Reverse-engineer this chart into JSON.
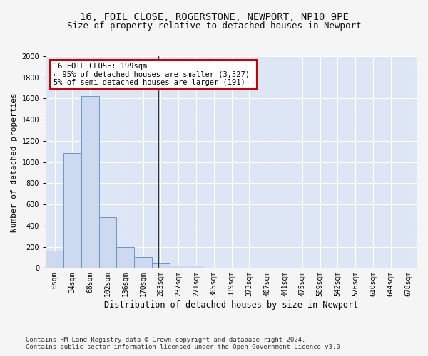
{
  "title1": "16, FOIL CLOSE, ROGERSTONE, NEWPORT, NP10 9PE",
  "title2": "Size of property relative to detached houses in Newport",
  "xlabel": "Distribution of detached houses by size in Newport",
  "ylabel": "Number of detached properties",
  "categories": [
    "0sqm",
    "34sqm",
    "68sqm",
    "102sqm",
    "136sqm",
    "170sqm",
    "203sqm",
    "237sqm",
    "271sqm",
    "305sqm",
    "339sqm",
    "373sqm",
    "407sqm",
    "441sqm",
    "475sqm",
    "509sqm",
    "542sqm",
    "576sqm",
    "610sqm",
    "644sqm",
    "678sqm"
  ],
  "values": [
    165,
    1085,
    1625,
    480,
    200,
    100,
    45,
    25,
    20,
    0,
    0,
    0,
    0,
    0,
    0,
    0,
    0,
    0,
    0,
    0,
    0
  ],
  "bar_color": "#ccd9ee",
  "bar_edge_color": "#6699cc",
  "vline_x": 5.85,
  "vline_color": "#333333",
  "annotation_line1": "16 FOIL CLOSE: 199sqm",
  "annotation_line2": "← 95% of detached houses are smaller (3,527)",
  "annotation_line3": "5% of semi-detached houses are larger (191) →",
  "annotation_box_color": "#ffffff",
  "annotation_box_edge": "#cc0000",
  "ylim": [
    0,
    2000
  ],
  "yticks": [
    0,
    200,
    400,
    600,
    800,
    1000,
    1200,
    1400,
    1600,
    1800,
    2000
  ],
  "plot_bg_color": "#dce6f5",
  "grid_color": "#ffffff",
  "footer1": "Contains HM Land Registry data © Crown copyright and database right 2024.",
  "footer2": "Contains public sector information licensed under the Open Government Licence v3.0.",
  "title1_fontsize": 10,
  "title2_fontsize": 9,
  "xlabel_fontsize": 8.5,
  "ylabel_fontsize": 8,
  "tick_fontsize": 7,
  "annot_fontsize": 7.5,
  "footer_fontsize": 6.5
}
